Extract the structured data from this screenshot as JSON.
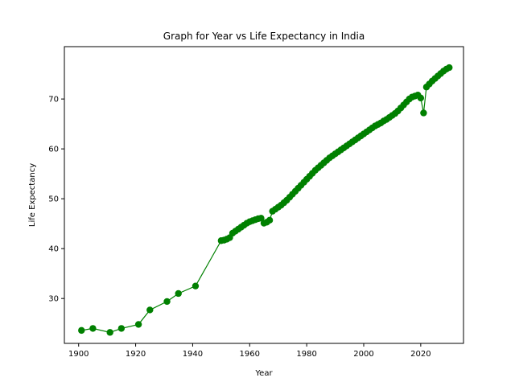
{
  "chart_data": {
    "type": "line",
    "title": "Graph for Year vs Life Expectancy in India",
    "xlabel": "Year",
    "ylabel": "Life Expectancy",
    "xlim": [
      1895,
      2035
    ],
    "ylim": [
      21,
      80.5
    ],
    "xticks": [
      1900,
      1920,
      1940,
      1960,
      1980,
      2000,
      2020
    ],
    "yticks": [
      30,
      40,
      50,
      60,
      70
    ],
    "grid": false,
    "legend": "none",
    "marker": "circle",
    "color": "#008000",
    "series": [
      {
        "x": [
          1901,
          1905,
          1911,
          1915,
          1921,
          1925,
          1931,
          1935,
          1941,
          1950,
          1951,
          1952,
          1953,
          1954,
          1955,
          1956,
          1957,
          1958,
          1959,
          1960,
          1961,
          1962,
          1963,
          1964,
          1965,
          1966,
          1967,
          1968,
          1969,
          1970,
          1971,
          1972,
          1973,
          1974,
          1975,
          1976,
          1977,
          1978,
          1979,
          1980,
          1981,
          1982,
          1983,
          1984,
          1985,
          1986,
          1987,
          1988,
          1989,
          1990,
          1991,
          1992,
          1993,
          1994,
          1995,
          1996,
          1997,
          1998,
          1999,
          2000,
          2001,
          2002,
          2003,
          2004,
          2005,
          2006,
          2007,
          2008,
          2009,
          2010,
          2011,
          2012,
          2013,
          2014,
          2015,
          2016,
          2017,
          2018,
          2019,
          2020,
          2021,
          2022,
          2023,
          2024,
          2025,
          2026,
          2027,
          2028,
          2029,
          2030
        ],
        "values": [
          23.6,
          24.0,
          23.2,
          24.0,
          24.8,
          27.7,
          29.4,
          31.0,
          32.5,
          41.6,
          41.7,
          41.9,
          42.2,
          43.1,
          43.5,
          43.9,
          44.3,
          44.7,
          45.1,
          45.4,
          45.6,
          45.8,
          46.0,
          46.1,
          45.1,
          45.3,
          45.7,
          47.5,
          47.9,
          48.3,
          48.7,
          49.2,
          49.7,
          50.3,
          50.9,
          51.5,
          52.1,
          52.7,
          53.3,
          53.9,
          54.5,
          55.1,
          55.7,
          56.2,
          56.7,
          57.2,
          57.7,
          58.2,
          58.6,
          59.0,
          59.4,
          59.8,
          60.2,
          60.6,
          61.0,
          61.4,
          61.8,
          62.2,
          62.6,
          63.0,
          63.4,
          63.8,
          64.2,
          64.6,
          64.9,
          65.2,
          65.6,
          65.9,
          66.3,
          66.7,
          67.1,
          67.6,
          68.2,
          68.8,
          69.4,
          70.0,
          70.4,
          70.6,
          70.8,
          70.2,
          67.2,
          72.4,
          73.0,
          73.6,
          74.1,
          74.6,
          75.1,
          75.6,
          76.0,
          76.3
        ]
      }
    ]
  }
}
